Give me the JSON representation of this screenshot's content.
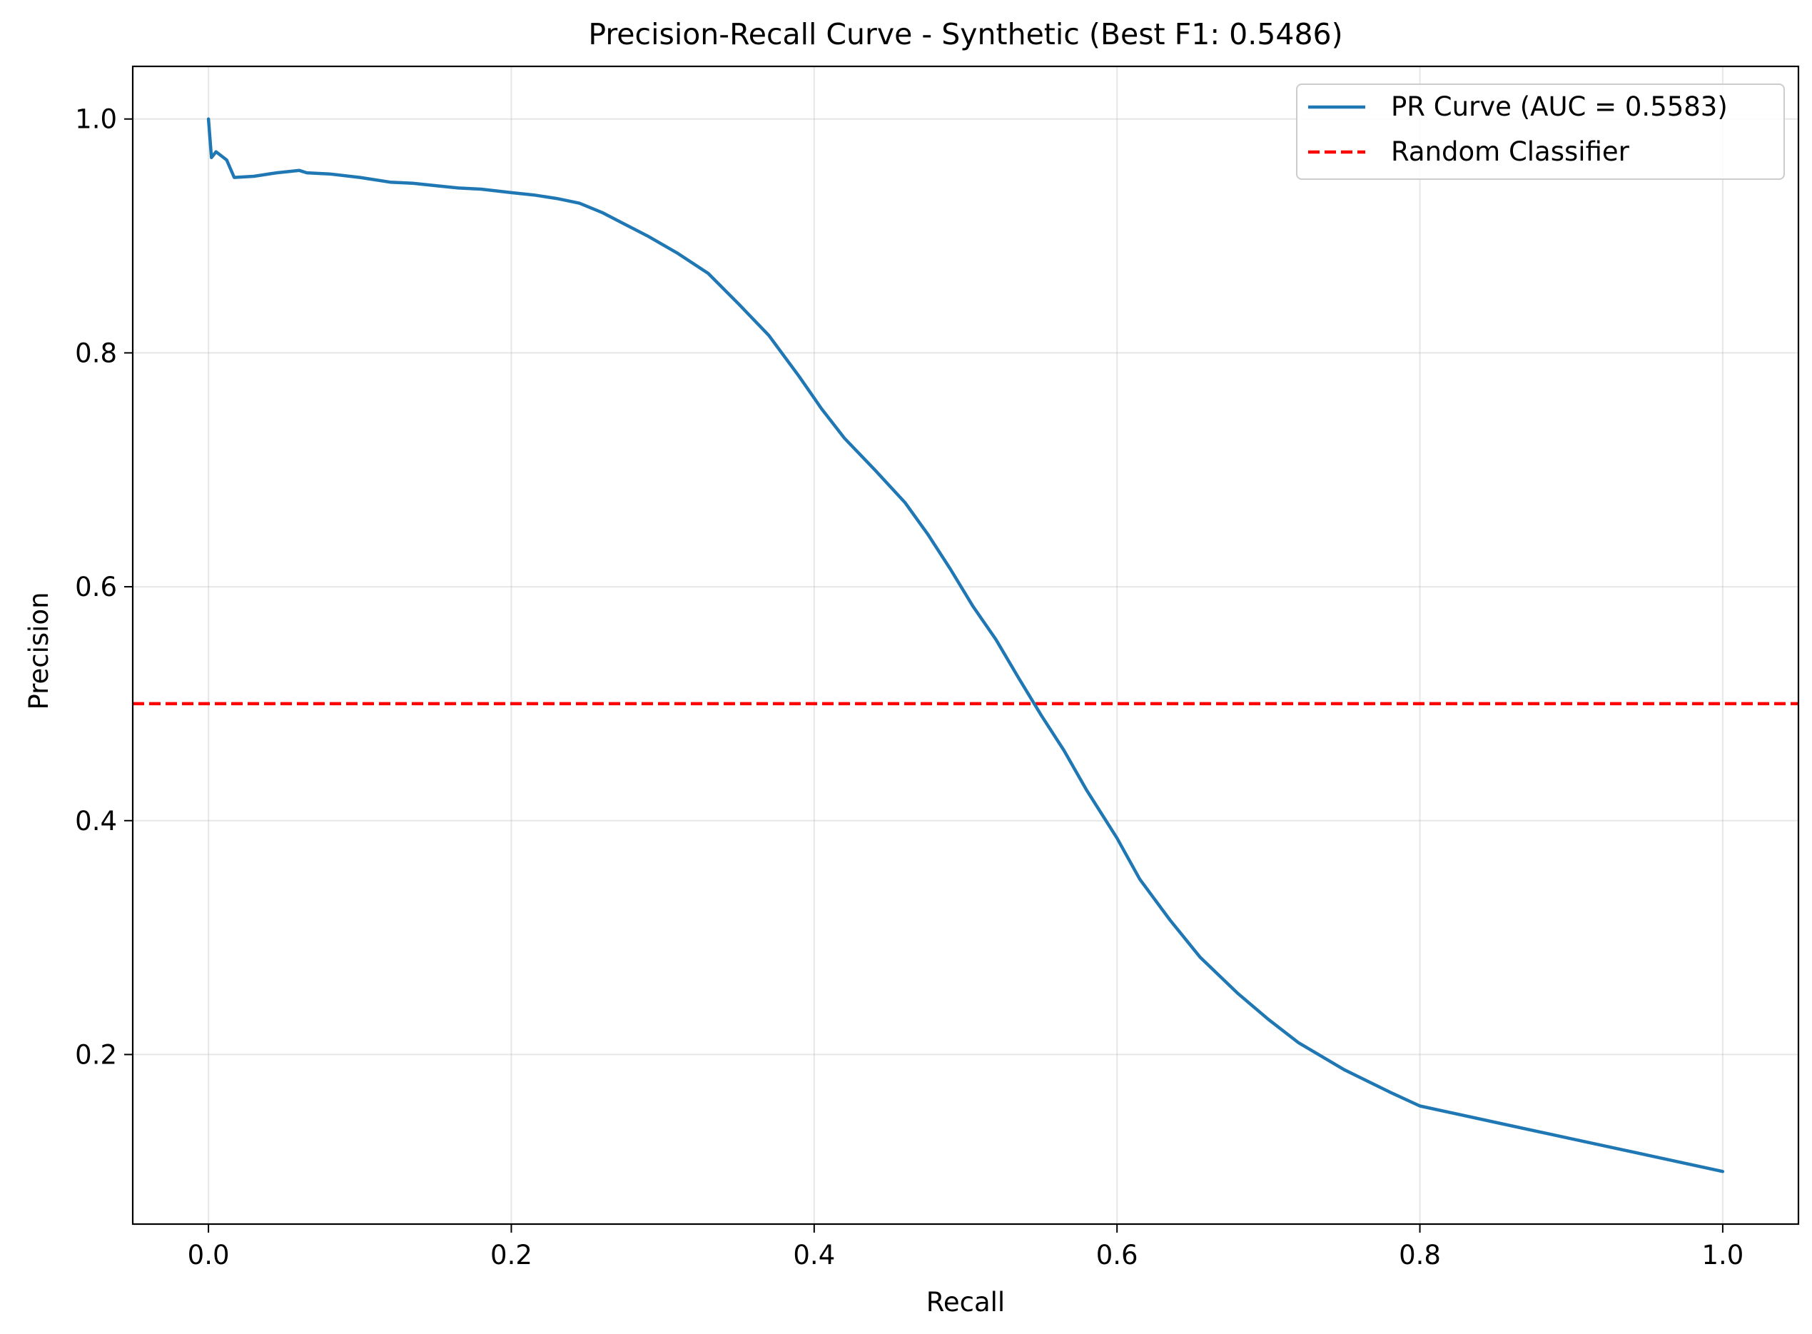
{
  "chart_data": {
    "type": "line",
    "title": "Precision-Recall Curve - Synthetic (Best F1: 0.5486)",
    "xlabel": "Recall",
    "ylabel": "Precision",
    "xlim": [
      -0.05,
      1.05
    ],
    "ylim": [
      0.055,
      1.045
    ],
    "xticks": [
      0.0,
      0.2,
      0.4,
      0.6,
      0.8,
      1.0
    ],
    "xtick_labels": [
      "0.0",
      "0.2",
      "0.4",
      "0.6",
      "0.8",
      "1.0"
    ],
    "yticks": [
      0.2,
      0.4,
      0.6,
      0.8,
      1.0
    ],
    "ytick_labels": [
      "0.2",
      "0.4",
      "0.6",
      "0.8",
      "1.0"
    ],
    "grid": true,
    "legend_position": "top-right",
    "series": [
      {
        "name": "PR Curve (AUC = 0.5583)",
        "color": "#1f77b4",
        "style": "solid",
        "points": [
          [
            0.0,
            1.0
          ],
          [
            0.002,
            0.967
          ],
          [
            0.005,
            0.972
          ],
          [
            0.012,
            0.965
          ],
          [
            0.017,
            0.95
          ],
          [
            0.03,
            0.951
          ],
          [
            0.045,
            0.954
          ],
          [
            0.06,
            0.956
          ],
          [
            0.065,
            0.954
          ],
          [
            0.08,
            0.953
          ],
          [
            0.1,
            0.95
          ],
          [
            0.12,
            0.946
          ],
          [
            0.135,
            0.945
          ],
          [
            0.15,
            0.943
          ],
          [
            0.165,
            0.941
          ],
          [
            0.18,
            0.94
          ],
          [
            0.2,
            0.937
          ],
          [
            0.215,
            0.935
          ],
          [
            0.23,
            0.932
          ],
          [
            0.245,
            0.928
          ],
          [
            0.26,
            0.92
          ],
          [
            0.275,
            0.91
          ],
          [
            0.29,
            0.9
          ],
          [
            0.31,
            0.885
          ],
          [
            0.33,
            0.868
          ],
          [
            0.35,
            0.842
          ],
          [
            0.37,
            0.815
          ],
          [
            0.39,
            0.78
          ],
          [
            0.405,
            0.752
          ],
          [
            0.42,
            0.727
          ],
          [
            0.44,
            0.7
          ],
          [
            0.46,
            0.672
          ],
          [
            0.475,
            0.645
          ],
          [
            0.49,
            0.615
          ],
          [
            0.505,
            0.583
          ],
          [
            0.52,
            0.555
          ],
          [
            0.535,
            0.522
          ],
          [
            0.55,
            0.49
          ],
          [
            0.565,
            0.46
          ],
          [
            0.58,
            0.426
          ],
          [
            0.6,
            0.385
          ],
          [
            0.615,
            0.35
          ],
          [
            0.635,
            0.315
          ],
          [
            0.655,
            0.283
          ],
          [
            0.68,
            0.252
          ],
          [
            0.7,
            0.23
          ],
          [
            0.72,
            0.21
          ],
          [
            0.75,
            0.187
          ],
          [
            0.78,
            0.168
          ],
          [
            0.8,
            0.156
          ],
          [
            0.85,
            0.142
          ],
          [
            0.9,
            0.128
          ],
          [
            0.95,
            0.114
          ],
          [
            1.0,
            0.1
          ]
        ]
      },
      {
        "name": "Random Classifier",
        "color": "#ff0000",
        "style": "dashed",
        "hline": 0.5
      }
    ]
  }
}
